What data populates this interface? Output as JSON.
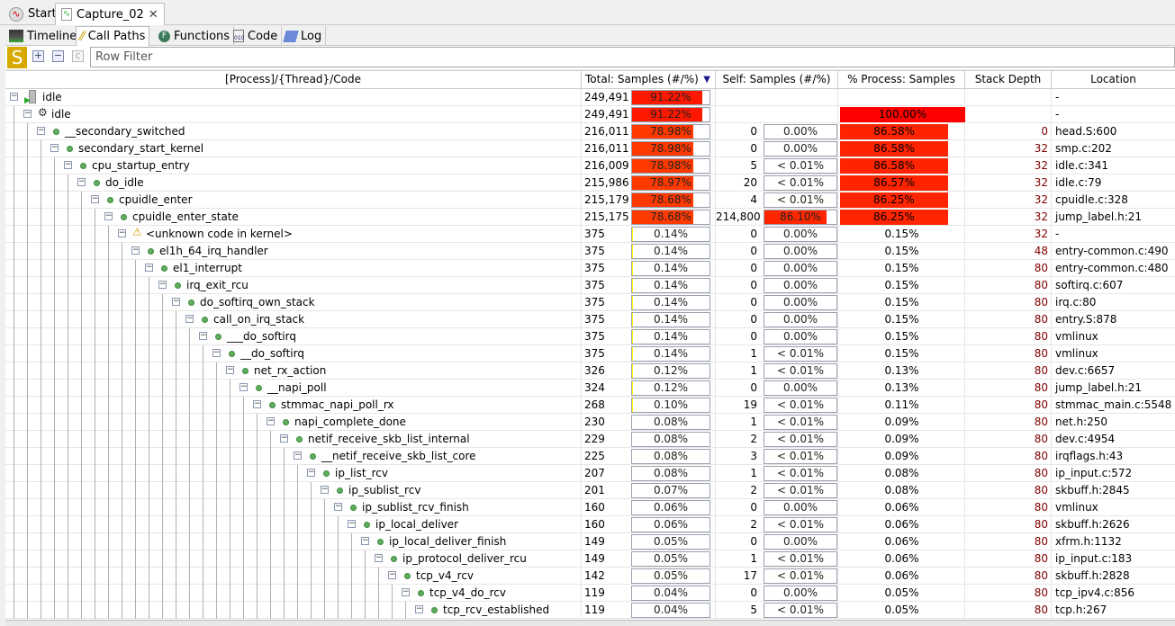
{
  "editor_tabs": [
    {
      "label": "Start",
      "icon": "start-pulse-icon"
    },
    {
      "label": "Capture_02",
      "icon": "capture-icon",
      "closable": true
    }
  ],
  "view_tabs": [
    {
      "label": "Timeline",
      "icon": "timeline-icon"
    },
    {
      "label": "Call Paths",
      "icon": "call-paths-icon",
      "active": true
    },
    {
      "label": "Functions",
      "icon": "functions-icon"
    },
    {
      "label": "Code",
      "icon": "code-icon"
    },
    {
      "label": "Log",
      "icon": "log-icon"
    }
  ],
  "toolbar": {
    "s_label": "S",
    "filter_placeholder": "Row Filter"
  },
  "columns": [
    "[Process]/{Thread}/Code",
    "Total: Samples (#/%)",
    "Self: Samples (#/%)",
    "% Process: Samples",
    "Stack Depth",
    "Location"
  ],
  "sort": {
    "column": "Total: Samples (#/%)",
    "direction": "descending"
  },
  "colors": {
    "bar_high": "#ff1a00",
    "bar_full": "#ff0000"
  },
  "rows": [
    {
      "name": "idle",
      "icon": "process-icon",
      "total": "249,491",
      "total_pct": "91.22%",
      "total_frac": 0.9122,
      "self": "",
      "self_pct": "",
      "self_frac": null,
      "proc_pct": "",
      "proc_frac": null,
      "depth": "",
      "location": "-"
    },
    {
      "name": "idle",
      "icon": "thread-gear-icon",
      "total": "249,491",
      "total_pct": "91.22%",
      "total_frac": 0.9122,
      "self": "",
      "self_pct": "",
      "self_frac": null,
      "proc_pct": "100.00%",
      "proc_frac": 1.0,
      "depth": "",
      "location": "-"
    },
    {
      "name": "__secondary_switched",
      "total": "216,011",
      "total_pct": "78.98%",
      "total_frac": 0.7898,
      "self": "0",
      "self_pct": "0.00%",
      "self_frac": 0,
      "proc_pct": "86.58%",
      "proc_frac": 0.8658,
      "depth": "0",
      "location": "head.S:600"
    },
    {
      "name": "secondary_start_kernel",
      "total": "216,011",
      "total_pct": "78.98%",
      "total_frac": 0.7898,
      "self": "0",
      "self_pct": "0.00%",
      "self_frac": 0,
      "proc_pct": "86.58%",
      "proc_frac": 0.8658,
      "depth": "32",
      "location": "smp.c:202"
    },
    {
      "name": "cpu_startup_entry",
      "total": "216,009",
      "total_pct": "78.98%",
      "total_frac": 0.7898,
      "self": "5",
      "self_pct": "< 0.01%",
      "self_frac": 0,
      "proc_pct": "86.58%",
      "proc_frac": 0.8658,
      "depth": "32",
      "location": "idle.c:341"
    },
    {
      "name": "do_idle",
      "total": "215,986",
      "total_pct": "78.97%",
      "total_frac": 0.7897,
      "self": "20",
      "self_pct": "< 0.01%",
      "self_frac": 0,
      "proc_pct": "86.57%",
      "proc_frac": 0.8657,
      "depth": "32",
      "location": "idle.c:79"
    },
    {
      "name": "cpuidle_enter",
      "total": "215,179",
      "total_pct": "78.68%",
      "total_frac": 0.7868,
      "self": "4",
      "self_pct": "< 0.01%",
      "self_frac": 0,
      "proc_pct": "86.25%",
      "proc_frac": 0.8625,
      "depth": "32",
      "location": "cpuidle.c:328"
    },
    {
      "name": "cpuidle_enter_state",
      "total": "215,175",
      "total_pct": "78.68%",
      "total_frac": 0.7868,
      "self": "214,800",
      "self_pct": "86.10%",
      "self_frac": 0.861,
      "proc_pct": "86.25%",
      "proc_frac": 0.8625,
      "depth": "32",
      "location": "jump_label.h:21"
    },
    {
      "name": "<unknown code in kernel>",
      "icon": "warning-icon",
      "total": "375",
      "total_pct": "0.14%",
      "total_frac": 0.0014,
      "self": "0",
      "self_pct": "0.00%",
      "self_frac": 0,
      "proc_pct": "0.15%",
      "proc_frac": 0.0015,
      "depth": "32",
      "location": "-"
    },
    {
      "name": "el1h_64_irq_handler",
      "total": "375",
      "total_pct": "0.14%",
      "total_frac": 0.0014,
      "self": "0",
      "self_pct": "0.00%",
      "self_frac": 0,
      "proc_pct": "0.15%",
      "proc_frac": 0.0015,
      "depth": "48",
      "location": "entry-common.c:490"
    },
    {
      "name": "el1_interrupt",
      "total": "375",
      "total_pct": "0.14%",
      "total_frac": 0.0014,
      "self": "0",
      "self_pct": "0.00%",
      "self_frac": 0,
      "proc_pct": "0.15%",
      "proc_frac": 0.0015,
      "depth": "80",
      "location": "entry-common.c:480"
    },
    {
      "name": "irq_exit_rcu",
      "total": "375",
      "total_pct": "0.14%",
      "total_frac": 0.0014,
      "self": "0",
      "self_pct": "0.00%",
      "self_frac": 0,
      "proc_pct": "0.15%",
      "proc_frac": 0.0015,
      "depth": "80",
      "location": "softirq.c:607"
    },
    {
      "name": "do_softirq_own_stack",
      "total": "375",
      "total_pct": "0.14%",
      "total_frac": 0.0014,
      "self": "0",
      "self_pct": "0.00%",
      "self_frac": 0,
      "proc_pct": "0.15%",
      "proc_frac": 0.0015,
      "depth": "80",
      "location": "irq.c:80"
    },
    {
      "name": "call_on_irq_stack",
      "total": "375",
      "total_pct": "0.14%",
      "total_frac": 0.0014,
      "self": "0",
      "self_pct": "0.00%",
      "self_frac": 0,
      "proc_pct": "0.15%",
      "proc_frac": 0.0015,
      "depth": "80",
      "location": "entry.S:878"
    },
    {
      "name": "___do_softirq",
      "total": "375",
      "total_pct": "0.14%",
      "total_frac": 0.0014,
      "self": "0",
      "self_pct": "0.00%",
      "self_frac": 0,
      "proc_pct": "0.15%",
      "proc_frac": 0.0015,
      "depth": "80",
      "location": "vmlinux"
    },
    {
      "name": "__do_softirq",
      "total": "375",
      "total_pct": "0.14%",
      "total_frac": 0.0014,
      "self": "1",
      "self_pct": "< 0.01%",
      "self_frac": 0,
      "proc_pct": "0.15%",
      "proc_frac": 0.0015,
      "depth": "80",
      "location": "vmlinux"
    },
    {
      "name": "net_rx_action",
      "total": "326",
      "total_pct": "0.12%",
      "total_frac": 0.0012,
      "self": "1",
      "self_pct": "< 0.01%",
      "self_frac": 0,
      "proc_pct": "0.13%",
      "proc_frac": 0.0013,
      "depth": "80",
      "location": "dev.c:6657"
    },
    {
      "name": "__napi_poll",
      "total": "324",
      "total_pct": "0.12%",
      "total_frac": 0.0012,
      "self": "0",
      "self_pct": "0.00%",
      "self_frac": 0,
      "proc_pct": "0.13%",
      "proc_frac": 0.0013,
      "depth": "80",
      "location": "jump_label.h:21"
    },
    {
      "name": "stmmac_napi_poll_rx",
      "total": "268",
      "total_pct": "0.10%",
      "total_frac": 0.001,
      "self": "19",
      "self_pct": "< 0.01%",
      "self_frac": 0,
      "proc_pct": "0.11%",
      "proc_frac": 0.0011,
      "depth": "80",
      "location": "stmmac_main.c:5548"
    },
    {
      "name": "napi_complete_done",
      "total": "230",
      "total_pct": "0.08%",
      "total_frac": 0.0008,
      "self": "1",
      "self_pct": "< 0.01%",
      "self_frac": 0,
      "proc_pct": "0.09%",
      "proc_frac": 0.0009,
      "depth": "80",
      "location": "net.h:250"
    },
    {
      "name": "netif_receive_skb_list_internal",
      "total": "229",
      "total_pct": "0.08%",
      "total_frac": 0.0008,
      "self": "2",
      "self_pct": "< 0.01%",
      "self_frac": 0,
      "proc_pct": "0.09%",
      "proc_frac": 0.0009,
      "depth": "80",
      "location": "dev.c:4954"
    },
    {
      "name": "__netif_receive_skb_list_core",
      "total": "225",
      "total_pct": "0.08%",
      "total_frac": 0.0008,
      "self": "3",
      "self_pct": "< 0.01%",
      "self_frac": 0,
      "proc_pct": "0.09%",
      "proc_frac": 0.0009,
      "depth": "80",
      "location": "irqflags.h:43"
    },
    {
      "name": "ip_list_rcv",
      "total": "207",
      "total_pct": "0.08%",
      "total_frac": 0.0008,
      "self": "1",
      "self_pct": "< 0.01%",
      "self_frac": 0,
      "proc_pct": "0.08%",
      "proc_frac": 0.0008,
      "depth": "80",
      "location": "ip_input.c:572"
    },
    {
      "name": "ip_sublist_rcv",
      "total": "201",
      "total_pct": "0.07%",
      "total_frac": 0.0007,
      "self": "2",
      "self_pct": "< 0.01%",
      "self_frac": 0,
      "proc_pct": "0.08%",
      "proc_frac": 0.0008,
      "depth": "80",
      "location": "skbuff.h:2845"
    },
    {
      "name": "ip_sublist_rcv_finish",
      "total": "160",
      "total_pct": "0.06%",
      "total_frac": 0.0006,
      "self": "0",
      "self_pct": "0.00%",
      "self_frac": 0,
      "proc_pct": "0.06%",
      "proc_frac": 0.0006,
      "depth": "80",
      "location": "vmlinux"
    },
    {
      "name": "ip_local_deliver",
      "total": "160",
      "total_pct": "0.06%",
      "total_frac": 0.0006,
      "self": "2",
      "self_pct": "< 0.01%",
      "self_frac": 0,
      "proc_pct": "0.06%",
      "proc_frac": 0.0006,
      "depth": "80",
      "location": "skbuff.h:2626"
    },
    {
      "name": "ip_local_deliver_finish",
      "total": "149",
      "total_pct": "0.05%",
      "total_frac": 0.0005,
      "self": "0",
      "self_pct": "0.00%",
      "self_frac": 0,
      "proc_pct": "0.06%",
      "proc_frac": 0.0006,
      "depth": "80",
      "location": "xfrm.h:1132"
    },
    {
      "name": "ip_protocol_deliver_rcu",
      "total": "149",
      "total_pct": "0.05%",
      "total_frac": 0.0005,
      "self": "1",
      "self_pct": "< 0.01%",
      "self_frac": 0,
      "proc_pct": "0.06%",
      "proc_frac": 0.0006,
      "depth": "80",
      "location": "ip_input.c:183"
    },
    {
      "name": "tcp_v4_rcv",
      "total": "142",
      "total_pct": "0.05%",
      "total_frac": 0.0005,
      "self": "17",
      "self_pct": "< 0.01%",
      "self_frac": 0,
      "proc_pct": "0.06%",
      "proc_frac": 0.0006,
      "depth": "80",
      "location": "skbuff.h:2828"
    },
    {
      "name": "tcp_v4_do_rcv",
      "total": "119",
      "total_pct": "0.04%",
      "total_frac": 0.0004,
      "self": "0",
      "self_pct": "0.00%",
      "self_frac": 0,
      "proc_pct": "0.05%",
      "proc_frac": 0.0005,
      "depth": "80",
      "location": "tcp_ipv4.c:856"
    },
    {
      "name": "tcp_rcv_established",
      "total": "119",
      "total_pct": "0.04%",
      "total_frac": 0.0004,
      "self": "5",
      "self_pct": "< 0.01%",
      "self_frac": 0,
      "proc_pct": "0.05%",
      "proc_frac": 0.0005,
      "depth": "80",
      "location": "tcp.h:267"
    }
  ]
}
